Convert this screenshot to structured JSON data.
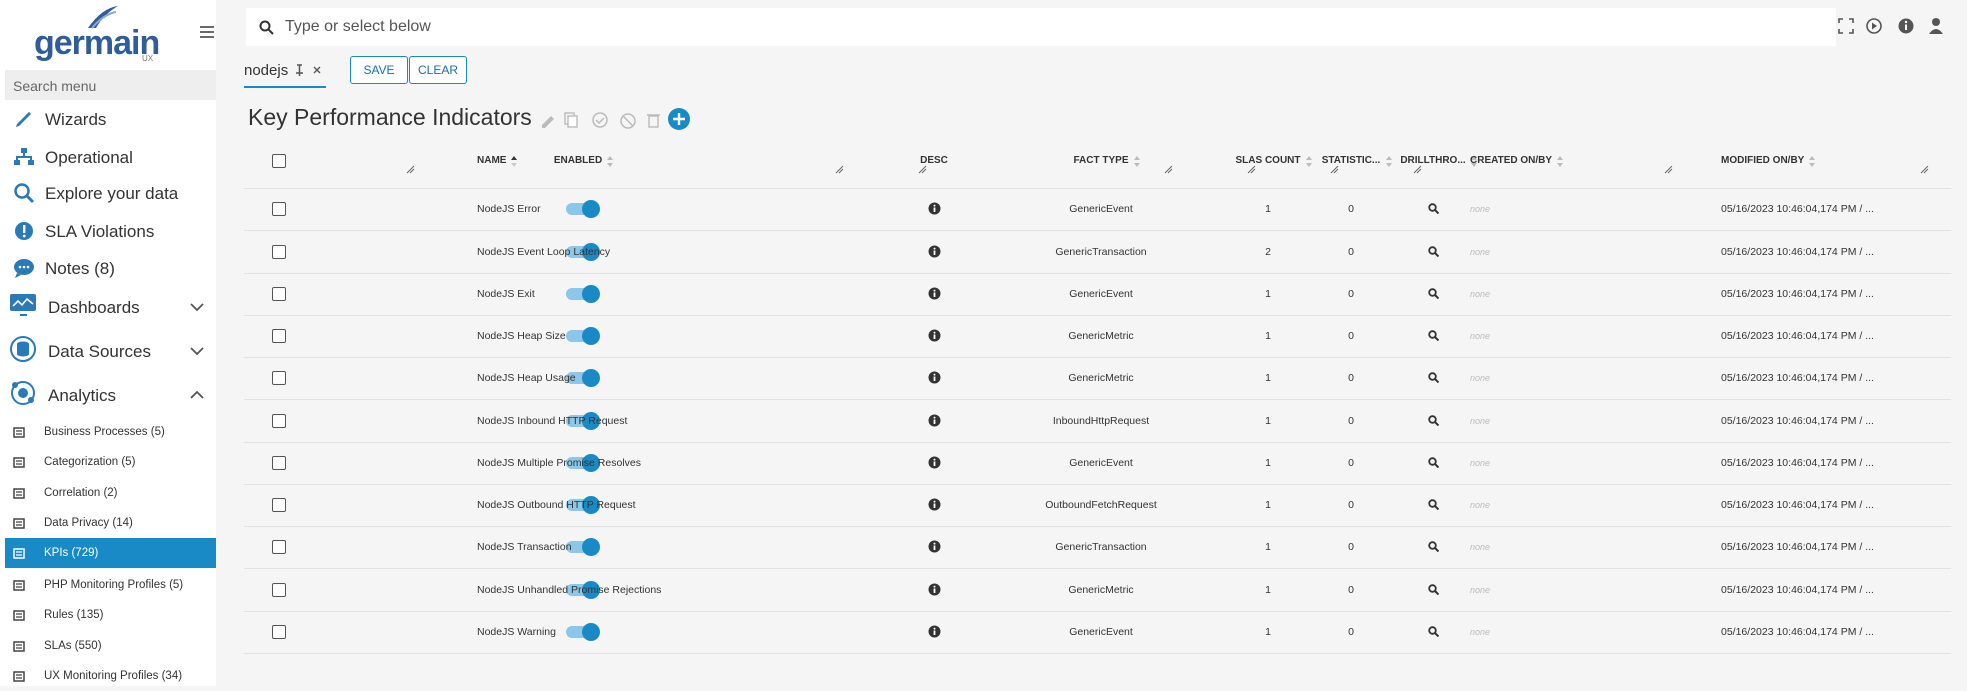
{
  "logo": {
    "name": "germain",
    "sub": "UX"
  },
  "sidebar": {
    "search_placeholder": "Search menu",
    "items": [
      "Wizards",
      "Operational",
      "Explore your data",
      "SLA Violations",
      "Notes (8)",
      "Dashboards",
      "Data Sources",
      "Analytics"
    ],
    "sub_items": [
      "Business Processes (5)",
      "Categorization (5)",
      "Correlation (2)",
      "Data Privacy (14)",
      "KPIs (729)",
      "PHP Monitoring Profiles (5)",
      "Rules (135)",
      "SLAs (550)",
      "UX Monitoring Profiles (34)"
    ]
  },
  "topbar": {
    "search_placeholder": "Type or select below"
  },
  "tab": {
    "label": "nodejs"
  },
  "buttons": {
    "save": "SAVE",
    "clear": "CLEAR"
  },
  "page_title": "Key Performance Indicators",
  "table": {
    "columns": [
      "ENABLED",
      "NAME",
      "DESC",
      "FACT TYPE",
      "SLAS COUNT",
      "STATISTIC...",
      "DRILLTHRO...",
      "CREATED ON/BY",
      "MODIFIED ON/BY"
    ],
    "rows": [
      [
        "NodeJS Error",
        "GenericEvent",
        1,
        0,
        "none",
        "05/16/2023 10:46:04,174 PM / ..."
      ],
      [
        "NodeJS Event Loop Latency",
        "GenericTransaction",
        2,
        0,
        "none",
        "05/16/2023 10:46:04,174 PM / ..."
      ],
      [
        "NodeJS Exit",
        "GenericEvent",
        1,
        0,
        "none",
        "05/16/2023 10:46:04,174 PM / ..."
      ],
      [
        "NodeJS Heap Size",
        "GenericMetric",
        1,
        0,
        "none",
        "05/16/2023 10:46:04,174 PM / ..."
      ],
      [
        "NodeJS Heap Usage",
        "GenericMetric",
        1,
        0,
        "none",
        "05/16/2023 10:46:04,174 PM / ..."
      ],
      [
        "NodeJS Inbound HTTP Request",
        "InboundHttpRequest",
        1,
        0,
        "none",
        "05/16/2023 10:46:04,174 PM / ..."
      ],
      [
        "NodeJS Multiple Promise Resolves",
        "GenericEvent",
        1,
        0,
        "none",
        "05/16/2023 10:46:04,174 PM / ..."
      ],
      [
        "NodeJS Outbound HTTP Request",
        "OutboundFetchRequest",
        1,
        0,
        "none",
        "05/16/2023 10:46:04,174 PM / ..."
      ],
      [
        "NodeJS Transaction",
        "GenericTransaction",
        1,
        0,
        "none",
        "05/16/2023 10:46:04,174 PM / ..."
      ],
      [
        "NodeJS Unhandled Promise Rejections",
        "GenericMetric",
        1,
        0,
        "none",
        "05/16/2023 10:46:04,174 PM / ..."
      ],
      [
        "NodeJS Warning",
        "GenericEvent",
        1,
        0,
        "none",
        "05/16/2023 10:46:04,174 PM / ..."
      ]
    ]
  }
}
